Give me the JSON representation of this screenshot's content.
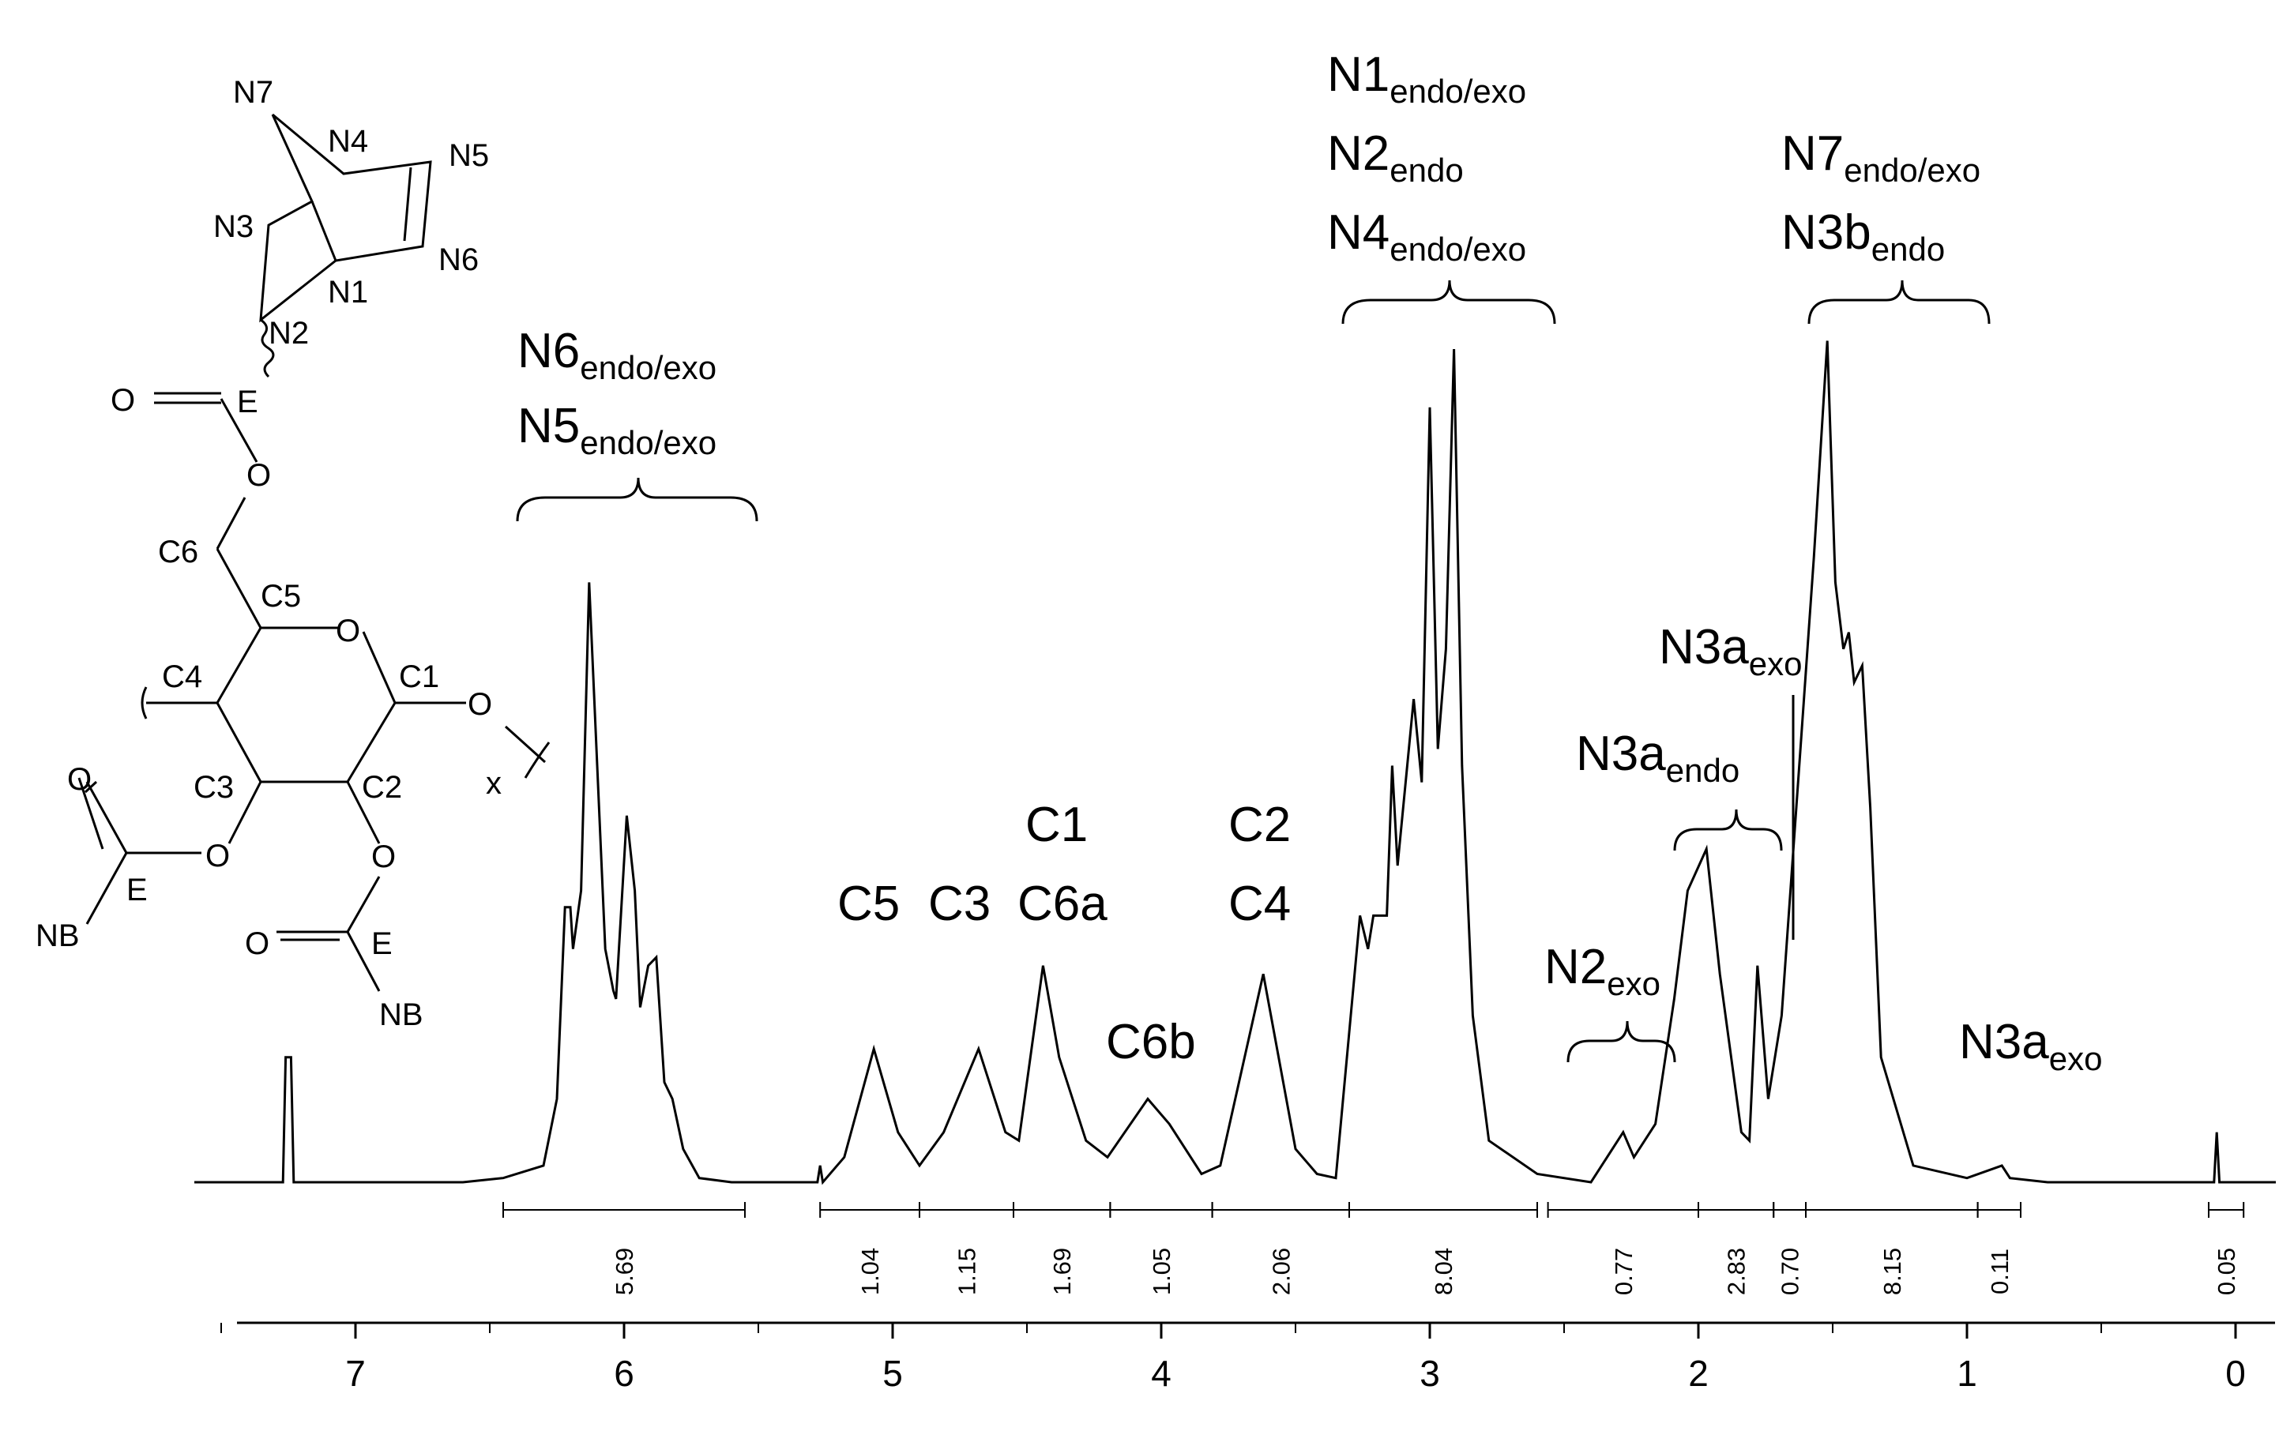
{
  "chart_data": {
    "type": "line",
    "xlim": [
      7.5,
      -0.1
    ],
    "x_axis_reversed": true,
    "x_ticks": [
      "7",
      "6",
      "5",
      "4",
      "3",
      "2",
      "1",
      "0"
    ],
    "grid": false,
    "spectrum": [
      [
        7.6,
        0.0
      ],
      [
        7.27,
        0.0
      ],
      [
        7.26,
        0.15
      ],
      [
        7.24,
        0.15
      ],
      [
        7.23,
        0.0
      ],
      [
        6.6,
        0.0
      ],
      [
        6.45,
        0.005
      ],
      [
        6.3,
        0.02
      ],
      [
        6.25,
        0.1
      ],
      [
        6.22,
        0.33
      ],
      [
        6.2,
        0.33
      ],
      [
        6.19,
        0.28
      ],
      [
        6.16,
        0.35
      ],
      [
        6.13,
        0.72
      ],
      [
        6.1,
        0.5
      ],
      [
        6.07,
        0.28
      ],
      [
        6.04,
        0.23
      ],
      [
        6.03,
        0.22
      ],
      [
        5.99,
        0.44
      ],
      [
        5.96,
        0.35
      ],
      [
        5.94,
        0.21
      ],
      [
        5.91,
        0.26
      ],
      [
        5.88,
        0.27
      ],
      [
        5.85,
        0.12
      ],
      [
        5.82,
        0.1
      ],
      [
        5.78,
        0.04
      ],
      [
        5.72,
        0.005
      ],
      [
        5.6,
        0.0
      ],
      [
        5.28,
        0.0
      ],
      [
        5.27,
        0.02
      ],
      [
        5.26,
        0.0
      ],
      [
        5.18,
        0.03
      ],
      [
        5.07,
        0.16
      ],
      [
        4.98,
        0.06
      ],
      [
        4.9,
        0.02
      ],
      [
        4.81,
        0.06
      ],
      [
        4.68,
        0.16
      ],
      [
        4.58,
        0.06
      ],
      [
        4.53,
        0.05
      ],
      [
        4.44,
        0.26
      ],
      [
        4.38,
        0.15
      ],
      [
        4.28,
        0.05
      ],
      [
        4.2,
        0.03
      ],
      [
        4.05,
        0.1
      ],
      [
        3.97,
        0.07
      ],
      [
        3.85,
        0.01
      ],
      [
        3.78,
        0.02
      ],
      [
        3.62,
        0.25
      ],
      [
        3.5,
        0.04
      ],
      [
        3.42,
        0.01
      ],
      [
        3.35,
        0.005
      ],
      [
        3.26,
        0.32
      ],
      [
        3.23,
        0.28
      ],
      [
        3.21,
        0.32
      ],
      [
        3.16,
        0.32
      ],
      [
        3.14,
        0.5
      ],
      [
        3.12,
        0.38
      ],
      [
        3.06,
        0.58
      ],
      [
        3.03,
        0.48
      ],
      [
        3.0,
        0.93
      ],
      [
        2.97,
        0.52
      ],
      [
        2.94,
        0.64
      ],
      [
        2.91,
        1.0
      ],
      [
        2.88,
        0.5
      ],
      [
        2.84,
        0.2
      ],
      [
        2.78,
        0.05
      ],
      [
        2.6,
        0.01
      ],
      [
        2.4,
        0.0
      ],
      [
        2.28,
        0.06
      ],
      [
        2.24,
        0.03
      ],
      [
        2.16,
        0.07
      ],
      [
        2.09,
        0.22
      ],
      [
        2.04,
        0.35
      ],
      [
        1.97,
        0.4
      ],
      [
        1.92,
        0.25
      ],
      [
        1.84,
        0.06
      ],
      [
        1.81,
        0.05
      ],
      [
        1.78,
        0.26
      ],
      [
        1.74,
        0.1
      ],
      [
        1.69,
        0.2
      ],
      [
        1.62,
        0.52
      ],
      [
        1.57,
        0.75
      ],
      [
        1.52,
        1.01
      ],
      [
        1.49,
        0.72
      ],
      [
        1.46,
        0.64
      ],
      [
        1.44,
        0.66
      ],
      [
        1.42,
        0.6
      ],
      [
        1.39,
        0.62
      ],
      [
        1.36,
        0.45
      ],
      [
        1.32,
        0.15
      ],
      [
        1.2,
        0.02
      ],
      [
        1.0,
        0.005
      ],
      [
        0.87,
        0.02
      ],
      [
        0.84,
        0.005
      ],
      [
        0.7,
        0.0
      ],
      [
        0.08,
        0.0
      ],
      [
        0.07,
        0.06
      ],
      [
        0.06,
        0.0
      ],
      [
        -0.15,
        0.0
      ]
    ],
    "annotations": [
      {
        "main": "N6",
        "sub": "endo/exo"
      },
      {
        "main": "N5",
        "sub": "endo/exo"
      },
      {
        "main": "C5"
      },
      {
        "main": "C3"
      },
      {
        "main": "C1"
      },
      {
        "main": "C6a"
      },
      {
        "main": "C6b"
      },
      {
        "main": "C2"
      },
      {
        "main": "C4"
      },
      {
        "main": "N1",
        "sub": "endo/exo"
      },
      {
        "main": "N2",
        "sub": "endo"
      },
      {
        "main": "N4",
        "sub": "endo/exo"
      },
      {
        "main": "N2",
        "sub": "exo"
      },
      {
        "main": "N3a",
        "sub": "endo"
      },
      {
        "main": "N3a",
        "sub": "exo"
      },
      {
        "main": "N7",
        "sub": "endo/exo"
      },
      {
        "main": "N3b",
        "sub": "endo"
      },
      {
        "main": "N3a",
        "sub": "exo"
      }
    ],
    "integrals": [
      {
        "from": 6.45,
        "to": 5.55,
        "value": "5.69"
      },
      {
        "from": 5.27,
        "to": 4.9,
        "value": "1.04"
      },
      {
        "from": 4.9,
        "to": 4.55,
        "value": "1.15"
      },
      {
        "from": 4.55,
        "to": 4.19,
        "value": "1.69"
      },
      {
        "from": 4.19,
        "to": 3.81,
        "value": "1.05"
      },
      {
        "from": 3.81,
        "to": 3.3,
        "value": "2.06"
      },
      {
        "from": 3.3,
        "to": 2.6,
        "value": "8.04"
      },
      {
        "from": 2.56,
        "to": 2.0,
        "value": "0.77"
      },
      {
        "from": 2.0,
        "to": 1.72,
        "value": "2.83"
      },
      {
        "from": 1.72,
        "to": 1.6,
        "value": "0.70"
      },
      {
        "from": 1.6,
        "to": 0.96,
        "value": "8.15"
      },
      {
        "from": 0.96,
        "to": 0.8,
        "value": "0.11"
      },
      {
        "from": 0.1,
        "to": -0.03,
        "value": "0.05"
      }
    ]
  },
  "structure": {
    "atoms": [
      "N7",
      "N4",
      "N5",
      "N3",
      "N6",
      "N1",
      "N2",
      "E",
      "O",
      "O",
      "C6",
      "C5",
      "O",
      "C4",
      "C1",
      "O",
      "x",
      "C3",
      "C2",
      "O",
      "O",
      "O",
      "E",
      "E",
      "NB",
      "NB",
      "O"
    ]
  }
}
